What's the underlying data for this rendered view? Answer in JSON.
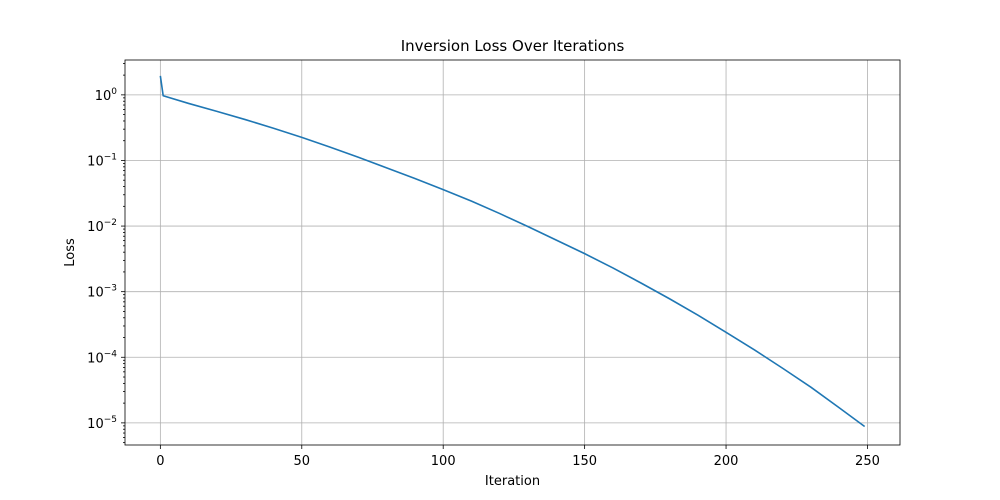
{
  "chart_data": {
    "type": "line",
    "title": "Inversion Loss Over Iterations",
    "xlabel": "Iteration",
    "ylabel": "Loss",
    "y_scale": "log",
    "xlim": [
      -12.5,
      261.5
    ],
    "ylim": [
      4.6e-06,
      3.4
    ],
    "x_ticks": [
      0,
      50,
      100,
      150,
      200,
      250
    ],
    "y_ticks": [
      {
        "value": 1,
        "base": "10",
        "exponent": "0"
      },
      {
        "value": 0.1,
        "base": "10",
        "exponent": "−1"
      },
      {
        "value": 0.01,
        "base": "10",
        "exponent": "−2"
      },
      {
        "value": 0.001,
        "base": "10",
        "exponent": "−3"
      },
      {
        "value": 0.0001,
        "base": "10",
        "exponent": "−4"
      },
      {
        "value": 1e-05,
        "base": "10",
        "exponent": "−5"
      }
    ],
    "grid": true,
    "series": [
      {
        "color": "#1f77b4",
        "x": [
          0,
          1,
          10,
          20,
          30,
          40,
          50,
          60,
          70,
          80,
          90,
          100,
          110,
          120,
          130,
          140,
          150,
          160,
          170,
          180,
          190,
          200,
          210,
          220,
          230,
          240,
          249
        ],
        "y": [
          1.95,
          0.97,
          0.74,
          0.56,
          0.42,
          0.31,
          0.225,
          0.16,
          0.112,
          0.077,
          0.053,
          0.036,
          0.024,
          0.0155,
          0.0098,
          0.0061,
          0.0038,
          0.0023,
          0.00135,
          0.00078,
          0.00044,
          0.00024,
          0.00013,
          6.8e-05,
          3.5e-05,
          1.7e-05,
          8.8e-06
        ]
      }
    ]
  }
}
